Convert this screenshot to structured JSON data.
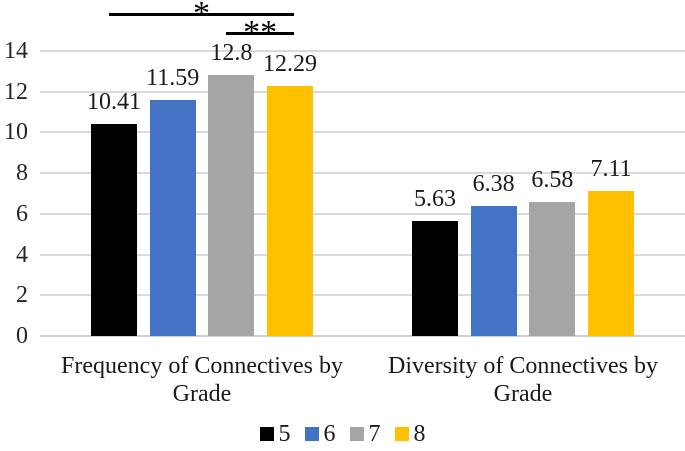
{
  "chart_data": {
    "type": "bar",
    "categories": [
      "Frequency of Connectives by Grade",
      "Diversity of Connectives by Grade"
    ],
    "series": [
      {
        "name": "5",
        "color": "#000000",
        "values": [
          10.41,
          5.63
        ],
        "data_labels": [
          "10.41",
          "5.63"
        ]
      },
      {
        "name": "6",
        "color": "#4472C4",
        "values": [
          11.59,
          6.38
        ],
        "data_labels": [
          "11.59",
          "6.38"
        ]
      },
      {
        "name": "7",
        "color": "#A5A5A5",
        "values": [
          12.8,
          6.58
        ],
        "data_labels": [
          "12.8",
          "6.58"
        ]
      },
      {
        "name": "8",
        "color": "#FFC000",
        "values": [
          12.29,
          7.11
        ],
        "data_labels": [
          "12.29",
          "7.11"
        ]
      }
    ],
    "title": "",
    "xlabel": "",
    "ylabel": "",
    "ylim": [
      0,
      14
    ],
    "yticks": [
      "0",
      "2",
      "4",
      "6",
      "8",
      "10",
      "12",
      "14"
    ],
    "grid": true,
    "gridline_color": "#D9D9D9",
    "legend_position": "bottom",
    "legend_entries": [
      "5",
      "6",
      "7",
      "8"
    ],
    "annotations": [
      {
        "label": "*",
        "category_index": 0,
        "from_series": 0,
        "to_series": 3,
        "level": 1
      },
      {
        "label": "**",
        "category_index": 0,
        "from_series": 2,
        "to_series": 3,
        "level": 2
      }
    ]
  }
}
